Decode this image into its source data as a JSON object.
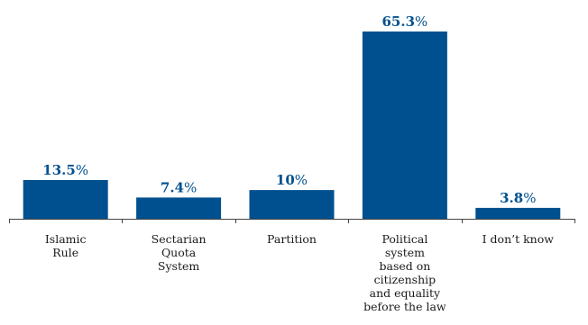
{
  "chart_data": {
    "type": "bar",
    "categories": [
      [
        "Islamic",
        "Rule"
      ],
      [
        "Sectarian",
        "Quota",
        "System"
      ],
      [
        "Partition"
      ],
      [
        "Political",
        "system",
        "based on",
        "citizenship",
        "and equality",
        "before the law"
      ],
      [
        "I don’t know"
      ]
    ],
    "values": [
      13.5,
      7.4,
      10,
      65.3,
      3.8
    ],
    "value_labels": [
      "13.5",
      "7.4",
      "10",
      "65.3",
      "3.8"
    ],
    "unit": "%",
    "ylim": [
      0,
      70
    ],
    "grid": false,
    "title": "",
    "xlabel": "",
    "ylabel": "",
    "bar_color": "#00508f",
    "label_color": "#00508f"
  }
}
